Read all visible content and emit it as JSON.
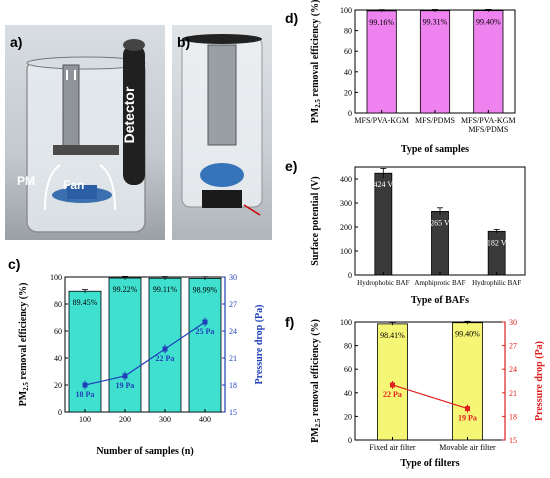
{
  "panels": {
    "a": {
      "label": "a)",
      "detector_text": "Detector",
      "pm_text": "PM",
      "fan_text": "Fan"
    },
    "b": {
      "label": "b)"
    },
    "c": {
      "label": "c)"
    },
    "d": {
      "label": "d)"
    },
    "e": {
      "label": "e)"
    },
    "f": {
      "label": "f)"
    }
  },
  "colors": {
    "cyan_bar": "#40e0d0",
    "magenta_bar": "#ee82ee",
    "gray_bar": "#3a3a3a",
    "yellow_bar": "#f5f576",
    "blue_line": "#1f3fb8",
    "red_line": "#e02020"
  },
  "chart_data": [
    {
      "id": "c",
      "type": "bar",
      "categories": [
        "100",
        "200",
        "300",
        "400"
      ],
      "values": [
        89.45,
        99.22,
        99.11,
        98.99
      ],
      "bar_labels": [
        "89.45%",
        "99.22%",
        "99.11%",
        "98.99%"
      ],
      "ylim": [
        0,
        100
      ],
      "yticks": [
        "0",
        "20",
        "40",
        "60",
        "80",
        "100"
      ],
      "xlabel": "Number of samples (n)",
      "ylabel": "PM2.5 removal efficiency (%)",
      "secondary": {
        "type": "line",
        "values": [
          18,
          19,
          22,
          25
        ],
        "point_labels": [
          "18 Pa",
          "19 Pa",
          "22 Pa",
          "25 Pa"
        ],
        "ylim": [
          15,
          30
        ],
        "yticks": [
          "15",
          "18",
          "21",
          "24",
          "27",
          "30"
        ],
        "ylabel": "Pressure drop (Pa)"
      }
    },
    {
      "id": "d",
      "type": "bar",
      "categories": [
        "MFS/PVA-KGM",
        "MFS/PDMS",
        "MFS/PVA-KGM MFS/PDMS"
      ],
      "values": [
        99.16,
        99.31,
        99.4
      ],
      "bar_labels": [
        "99.16%",
        "99.31%",
        "99.40%"
      ],
      "ylim": [
        0,
        100
      ],
      "yticks": [
        "0",
        "20",
        "40",
        "60",
        "80",
        "100"
      ],
      "xlabel": "Type of samples",
      "ylabel": "PM2.5 removal efficiency (%)"
    },
    {
      "id": "e",
      "type": "bar",
      "categories": [
        "Hydrophobic BAF",
        "Amphiprotic BAF",
        "Hydrophilic BAF"
      ],
      "values": [
        424,
        265,
        182
      ],
      "bar_labels": [
        "424 V",
        "265 V",
        "182 V"
      ],
      "ylim": [
        0,
        450
      ],
      "yticks": [
        "0",
        "100",
        "200",
        "300",
        "400"
      ],
      "xlabel": "Type of BAFs",
      "ylabel": "Surface potential (V)"
    },
    {
      "id": "f",
      "type": "bar",
      "categories": [
        "Fixed air filter",
        "Movable air filter"
      ],
      "values": [
        98.41,
        99.4
      ],
      "bar_labels": [
        "98.41%",
        "99.40%"
      ],
      "ylim": [
        0,
        100
      ],
      "yticks": [
        "0",
        "20",
        "40",
        "60",
        "80",
        "100"
      ],
      "xlabel": "Type of filters",
      "ylabel": "PM2.5 removal efficiency (%)",
      "secondary": {
        "type": "line",
        "values": [
          22,
          19
        ],
        "point_labels": [
          "22 Pa",
          "19 Pa"
        ],
        "ylim": [
          15,
          30
        ],
        "yticks": [
          "15",
          "18",
          "21",
          "24",
          "27",
          "30"
        ],
        "ylabel": "Pressure drop (Pa)"
      }
    }
  ]
}
